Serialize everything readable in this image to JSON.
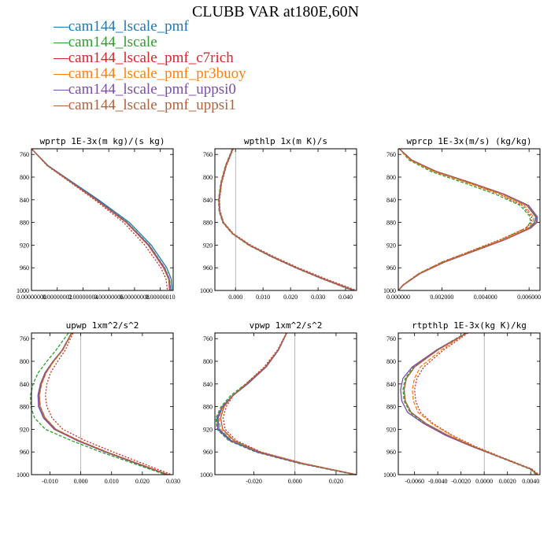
{
  "title": "CLUBB VAR at180E,60N",
  "legend": [
    {
      "label": "cam144_lscale_pmf",
      "color": "#1f77b4",
      "dash": ""
    },
    {
      "label": "cam144_lscale",
      "color": "#2ca02c",
      "dash": "4,2"
    },
    {
      "label": "cam144_lscale_pmf_c7rich",
      "color": "#d62728",
      "dash": "2,2"
    },
    {
      "label": "cam144_lscale_pmf_pr3buoy",
      "color": "#ff7f0e",
      "dash": "5,2"
    },
    {
      "label": "cam144_lscale_pmf_uppsi0",
      "color": "#7b4fa8",
      "dash": ""
    },
    {
      "label": "cam144_lscale_pmf_uppsi1",
      "color": "#b5613b",
      "dash": ""
    }
  ],
  "chart_data": [
    {
      "type": "line",
      "title": "wprtp  1E-3x(m kg)/(s kg)",
      "xlim": [
        0,
        1.1e-07
      ],
      "ylim": [
        1000,
        750
      ],
      "y_ticks": [
        760,
        800,
        840,
        880,
        920,
        960,
        1000
      ],
      "x_ticks": [
        0,
        2e-08,
        4e-08,
        6e-08,
        8e-08,
        1e-07
      ],
      "x_tick_labels": [
        "0.00000000",
        "0.00000002",
        "0.00000004",
        "0.00000006",
        "0.00000008",
        "0.00000010"
      ],
      "y": [
        750,
        780,
        800,
        840,
        880,
        920,
        960,
        980,
        1000
      ],
      "series": [
        {
          "values": [
            0.0,
            1.3e-08,
            2.6e-08,
            5.2e-08,
            7.6e-08,
            9.3e-08,
            1.05e-07,
            1.085e-07,
            1.09e-07
          ]
        },
        {
          "values": [
            0.0,
            1.28e-08,
            2.55e-08,
            5.1e-08,
            7.45e-08,
            9.15e-08,
            1.035e-07,
            1.072e-07,
            1.08e-07
          ]
        },
        {
          "values": [
            0.0,
            1.22e-08,
            2.45e-08,
            4.9e-08,
            7.15e-08,
            8.8e-08,
            1.005e-07,
            1.045e-07,
            1.055e-07
          ]
        },
        {
          "values": [
            0.0,
            1.26e-08,
            2.52e-08,
            5.05e-08,
            7.4e-08,
            9.08e-08,
            1.03e-07,
            1.068e-07,
            1.076e-07
          ]
        },
        {
          "values": [
            0.0,
            1.27e-08,
            2.54e-08,
            5.08e-08,
            7.42e-08,
            9.12e-08,
            1.032e-07,
            1.07e-07,
            1.078e-07
          ]
        },
        {
          "values": [
            0.0,
            1.25e-08,
            2.5e-08,
            5e-08,
            7.35e-08,
            9.05e-08,
            1.025e-07,
            1.065e-07,
            1.072e-07
          ]
        }
      ]
    },
    {
      "type": "line",
      "title": "wpthlp  1x(m K)/s",
      "xlim": [
        -0.0075,
        0.044
      ],
      "ylim": [
        1000,
        750
      ],
      "y_ticks": [
        760,
        800,
        840,
        880,
        920,
        960,
        1000
      ],
      "x_ticks": [
        0,
        0.01,
        0.02,
        0.03,
        0.04
      ],
      "x_tick_labels": [
        "0.000",
        "0.010",
        "0.020",
        "0.030",
        "0.040"
      ],
      "y": [
        750,
        780,
        810,
        840,
        860,
        880,
        900,
        920,
        940,
        960,
        980,
        1000
      ],
      "series": [
        {
          "values": [
            -0.001,
            -0.0035,
            -0.0052,
            -0.006,
            -0.0058,
            -0.0045,
            -0.001,
            0.005,
            0.013,
            0.022,
            0.032,
            0.043
          ]
        },
        {
          "values": [
            -0.0012,
            -0.0037,
            -0.0054,
            -0.0062,
            -0.006,
            -0.0047,
            -0.0012,
            0.0047,
            0.0127,
            0.0217,
            0.0317,
            0.0425
          ]
        },
        {
          "values": [
            -0.0008,
            -0.0033,
            -0.005,
            -0.0058,
            -0.0056,
            -0.0043,
            -0.0007,
            0.0055,
            0.0138,
            0.0228,
            0.033,
            0.044
          ]
        },
        {
          "values": [
            -0.0011,
            -0.0036,
            -0.0053,
            -0.0061,
            -0.0059,
            -0.0046,
            -0.0011,
            0.0049,
            0.0129,
            0.0219,
            0.0319,
            0.0428
          ]
        },
        {
          "values": [
            -0.001,
            -0.0035,
            -0.0052,
            -0.006,
            -0.0058,
            -0.0045,
            -0.001,
            0.005,
            0.013,
            0.022,
            0.032,
            0.043
          ]
        },
        {
          "values": [
            -0.0009,
            -0.0034,
            -0.0051,
            -0.0059,
            -0.0057,
            -0.0044,
            -0.0009,
            0.0052,
            0.0133,
            0.0223,
            0.0324,
            0.0434
          ]
        }
      ]
    },
    {
      "type": "line",
      "title": "wprcp  1E-3x(m/s) (kg/kg)",
      "xlim": [
        0,
        0.0065
      ],
      "ylim": [
        1000,
        750
      ],
      "y_ticks": [
        760,
        800,
        840,
        880,
        920,
        960,
        1000
      ],
      "x_ticks": [
        0,
        0.002,
        0.004,
        0.006
      ],
      "x_tick_labels": [
        "0.000000",
        "0.002000",
        "0.004000",
        "0.006000"
      ],
      "y": [
        750,
        770,
        790,
        810,
        830,
        850,
        870,
        880,
        890,
        910,
        930,
        950,
        970,
        990,
        1000
      ],
      "series": [
        {
          "values": [
            5e-05,
            0.0006,
            0.0017,
            0.0033,
            0.0048,
            0.0059,
            0.0063,
            0.00625,
            0.006,
            0.0049,
            0.0035,
            0.0021,
            0.001,
            0.00025,
            0.0
          ]
        },
        {
          "values": [
            5e-05,
            0.0005,
            0.0015,
            0.003,
            0.00445,
            0.0056,
            0.00605,
            0.00605,
            0.00585,
            0.00475,
            0.00338,
            0.002,
            0.00095,
            0.00022,
            0.0
          ]
        },
        {
          "values": [
            5e-05,
            0.00058,
            0.00165,
            0.0032,
            0.00462,
            0.0057,
            0.00612,
            0.0061,
            0.00585,
            0.0047,
            0.00335,
            0.002,
            0.00095,
            0.00022,
            0.0
          ]
        },
        {
          "values": [
            5e-05,
            0.00055,
            0.00162,
            0.00318,
            0.00465,
            0.00578,
            0.0062,
            0.00618,
            0.00592,
            0.00478,
            0.0034,
            0.00205,
            0.00098,
            0.00023,
            0.0
          ]
        },
        {
          "values": [
            5e-05,
            0.00062,
            0.00175,
            0.00335,
            0.00485,
            0.00598,
            0.00638,
            0.00636,
            0.00608,
            0.00492,
            0.00352,
            0.00212,
            0.00101,
            0.00024,
            0.0
          ]
        },
        {
          "values": [
            5e-05,
            0.0006,
            0.00172,
            0.00332,
            0.0048,
            0.00592,
            0.00634,
            0.00632,
            0.00604,
            0.00488,
            0.00348,
            0.0021,
            0.001,
            0.00024,
            0.0
          ]
        }
      ]
    },
    {
      "type": "line",
      "title": "upwp  1xm^2/s^2",
      "xlim": [
        -0.016,
        0.03
      ],
      "ylim": [
        1000,
        750
      ],
      "y_ticks": [
        760,
        800,
        840,
        880,
        920,
        960,
        1000
      ],
      "x_ticks": [
        -0.01,
        0,
        0.01,
        0.02,
        0.03
      ],
      "x_tick_labels": [
        "-0.010",
        "0.000",
        "0.010",
        "0.020",
        "0.030"
      ],
      "y": [
        750,
        780,
        800,
        820,
        840,
        860,
        880,
        900,
        920,
        940,
        960,
        980,
        1000
      ],
      "series": [
        {
          "values": [
            -0.003,
            -0.006,
            -0.009,
            -0.0115,
            -0.013,
            -0.0138,
            -0.0136,
            -0.012,
            -0.0085,
            -0.001,
            0.008,
            0.018,
            0.028
          ]
        },
        {
          "values": [
            -0.004,
            -0.008,
            -0.011,
            -0.0138,
            -0.0155,
            -0.0163,
            -0.0162,
            -0.015,
            -0.0115,
            -0.003,
            0.0065,
            0.017,
            0.0275
          ]
        },
        {
          "values": [
            -0.0025,
            -0.005,
            -0.0075,
            -0.0098,
            -0.011,
            -0.0115,
            -0.011,
            -0.0093,
            -0.0058,
            0.0015,
            0.0105,
            0.02,
            0.0295
          ]
        },
        {
          "values": [
            -0.0028,
            -0.0058,
            -0.0087,
            -0.0112,
            -0.0127,
            -0.0134,
            -0.0131,
            -0.0115,
            -0.008,
            -0.0005,
            0.0085,
            0.0185,
            0.0285
          ]
        },
        {
          "values": [
            -0.003,
            -0.006,
            -0.009,
            -0.0116,
            -0.0131,
            -0.0139,
            -0.0137,
            -0.0121,
            -0.0086,
            -0.0011,
            0.0079,
            0.018,
            0.0282
          ]
        },
        {
          "values": [
            -0.0029,
            -0.0059,
            -0.0089,
            -0.0113,
            -0.0128,
            -0.0135,
            -0.0132,
            -0.0116,
            -0.0081,
            -0.0006,
            0.0084,
            0.0184,
            0.0284
          ]
        }
      ]
    },
    {
      "type": "line",
      "title": "vpwp  1xm^2/s^2",
      "xlim": [
        -0.039,
        0.03
      ],
      "ylim": [
        1000,
        750
      ],
      "y_ticks": [
        760,
        800,
        840,
        880,
        920,
        960,
        1000
      ],
      "x_ticks": [
        -0.02,
        0,
        0.02
      ],
      "x_tick_labels": [
        "-0.020",
        "0.000",
        "0.020"
      ],
      "y": [
        750,
        780,
        810,
        840,
        860,
        880,
        900,
        920,
        940,
        960,
        980,
        1000
      ],
      "series": [
        {
          "values": [
            -0.004,
            -0.008,
            -0.014,
            -0.023,
            -0.03,
            -0.035,
            -0.0375,
            -0.037,
            -0.031,
            -0.018,
            0.003,
            0.03
          ]
        },
        {
          "values": [
            -0.004,
            -0.0082,
            -0.0145,
            -0.024,
            -0.0312,
            -0.036,
            -0.0385,
            -0.038,
            -0.0322,
            -0.0192,
            0.0018,
            0.029
          ]
        },
        {
          "values": [
            -0.0042,
            -0.0085,
            -0.015,
            -0.024,
            -0.03,
            -0.0335,
            -0.035,
            -0.034,
            -0.0285,
            -0.0165,
            0.004,
            0.03
          ]
        },
        {
          "values": [
            -0.0041,
            -0.0081,
            -0.0142,
            -0.0233,
            -0.0302,
            -0.035,
            -0.037,
            -0.0362,
            -0.0302,
            -0.0173,
            0.0036,
            0.03
          ]
        },
        {
          "values": [
            -0.004,
            -0.008,
            -0.0141,
            -0.0232,
            -0.0303,
            -0.0354,
            -0.038,
            -0.0376,
            -0.0316,
            -0.0185,
            0.0026,
            0.0297
          ]
        },
        {
          "values": [
            -0.0041,
            -0.0082,
            -0.0144,
            -0.0236,
            -0.0302,
            -0.0345,
            -0.0362,
            -0.0352,
            -0.0295,
            -0.017,
            0.0036,
            0.03
          ]
        }
      ]
    },
    {
      "type": "line",
      "title": "rtpthlp  1E-3x(kg K)/kg",
      "xlim": [
        -0.0074,
        0.0048
      ],
      "ylim": [
        1000,
        750
      ],
      "y_ticks": [
        760,
        800,
        840,
        880,
        920,
        960,
        1000
      ],
      "x_ticks": [
        -0.006,
        -0.004,
        -0.002,
        0,
        0.002,
        0.004
      ],
      "x_tick_labels": [
        "-0.0060",
        "-0.0040",
        "-0.0020",
        "0.0000",
        "0.0020",
        "0.0040"
      ],
      "y": [
        750,
        780,
        810,
        830,
        850,
        870,
        890,
        910,
        930,
        950,
        970,
        990,
        1000
      ],
      "series": [
        {
          "values": [
            -0.0015,
            -0.004,
            -0.006,
            -0.0067,
            -0.0069,
            -0.0068,
            -0.0063,
            -0.005,
            -0.0032,
            -0.001,
            0.0015,
            0.004,
            0.0046
          ]
        },
        {
          "values": [
            -0.0016,
            -0.0041,
            -0.0061,
            -0.0068,
            -0.007,
            -0.0069,
            -0.0064,
            -0.0051,
            -0.0033,
            -0.0011,
            0.0014,
            0.0039,
            0.0045
          ]
        },
        {
          "values": [
            -0.0014,
            -0.0035,
            -0.0052,
            -0.0058,
            -0.006,
            -0.0059,
            -0.0055,
            -0.0044,
            -0.0028,
            -0.0008,
            0.0016,
            0.0041,
            0.0047
          ]
        },
        {
          "values": [
            -0.0015,
            -0.0037,
            -0.0055,
            -0.006,
            -0.0062,
            -0.0061,
            -0.0057,
            -0.0045,
            -0.0029,
            -0.0009,
            0.0015,
            0.004,
            0.0046
          ]
        },
        {
          "values": [
            -0.0015,
            -0.0041,
            -0.0062,
            -0.007,
            -0.0072,
            -0.0071,
            -0.0066,
            -0.0052,
            -0.0034,
            -0.0011,
            0.0015,
            0.004,
            0.0046
          ]
        },
        {
          "values": [
            -0.0015,
            -0.004,
            -0.006,
            -0.0067,
            -0.0069,
            -0.0068,
            -0.0063,
            -0.005,
            -0.0032,
            -0.001,
            0.0015,
            0.004,
            0.0046
          ]
        }
      ]
    }
  ]
}
